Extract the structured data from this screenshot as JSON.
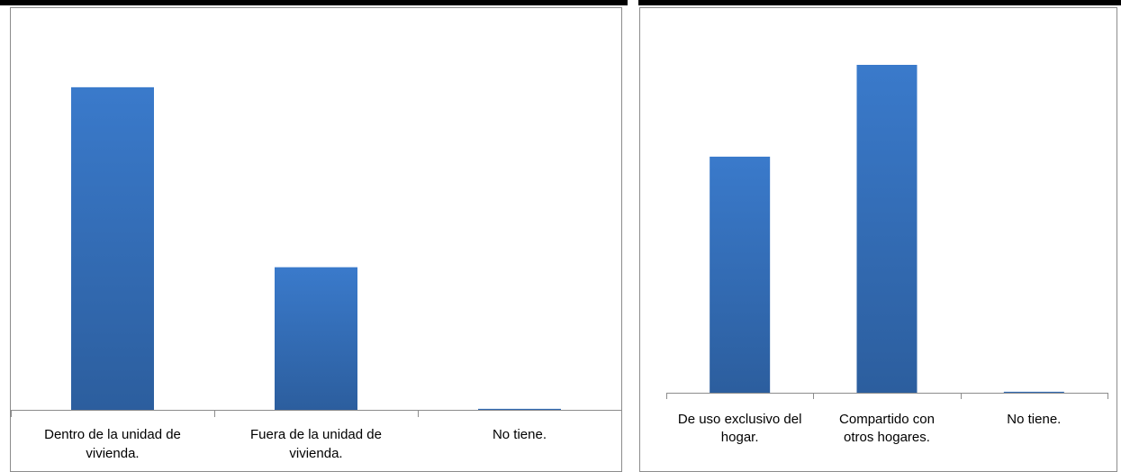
{
  "chart_data": [
    {
      "type": "bar",
      "categories": [
        [
          "Dentro de la unidad de",
          "vivienda."
        ],
        [
          "Fuera de la unidad de",
          "vivienda."
        ],
        [
          "No tiene."
        ]
      ],
      "values": [
        95,
        42,
        0.3
      ],
      "ylim": [
        0,
        100
      ],
      "grid": false,
      "legend": "none",
      "bar_color": "#3a7acb",
      "bar_color_dark": "#2c5e9e"
    },
    {
      "type": "bar",
      "categories": [
        [
          "De uso exclusivo del",
          "hogar."
        ],
        [
          "Compartido con",
          "otros hogares."
        ],
        [
          "No tiene."
        ]
      ],
      "values": [
        72,
        100,
        0.3
      ],
      "ylim": [
        0,
        100
      ],
      "grid": false,
      "legend": "none",
      "bar_color": "#3a7acb",
      "bar_color_dark": "#2c5e9e"
    }
  ]
}
